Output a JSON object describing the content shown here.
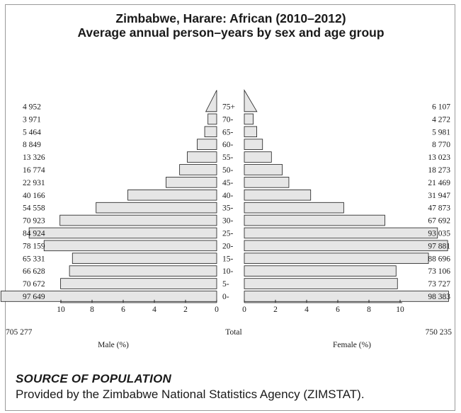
{
  "chart_data": {
    "type": "bar",
    "title": "Zimbabwe, Harare: African (2010–2012)",
    "subtitle": "Average annual person–years by sex and age group",
    "age_groups": [
      "75+",
      "70-",
      "65-",
      "60-",
      "55-",
      "50-",
      "45-",
      "40-",
      "35-",
      "30-",
      "25-",
      "20-",
      "15-",
      "10-",
      "5-",
      "0-"
    ],
    "series": [
      {
        "name": "Male (%)",
        "counts": [
          "4 952",
          "3 971",
          "5 464",
          "8 849",
          "13 326",
          "16 774",
          "22 931",
          "40 166",
          "54 558",
          "70 923",
          "84 924",
          "78 159",
          "65 331",
          "66 628",
          "70 672",
          "97 649"
        ],
        "values": [
          0.7,
          0.56,
          0.77,
          1.25,
          1.89,
          2.38,
          3.25,
          5.7,
          7.74,
          10.06,
          12.04,
          11.08,
          9.26,
          9.45,
          10.02,
          13.85
        ],
        "total": "705 277"
      },
      {
        "name": "Female (%)",
        "counts": [
          "6 107",
          "4 272",
          "5 981",
          "8 770",
          "13 023",
          "18 273",
          "21 469",
          "31 947",
          "47 873",
          "67 692",
          "93 035",
          "97 881",
          "88 696",
          "73 106",
          "73 727",
          "98 383"
        ],
        "values": [
          0.81,
          0.57,
          0.8,
          1.17,
          1.74,
          2.44,
          2.86,
          4.26,
          6.38,
          9.02,
          12.4,
          13.05,
          11.82,
          9.74,
          9.83,
          13.11
        ],
        "total": "750 235"
      }
    ],
    "x_ticks_male": [
      "10",
      "8",
      "6",
      "4",
      "2",
      "0"
    ],
    "x_ticks_female": [
      "0",
      "2",
      "4",
      "6",
      "8",
      "10"
    ],
    "xlim": [
      0,
      10
    ],
    "xlabel_male": "Male (%)",
    "xlabel_female": "Female (%)",
    "total_label": "Total",
    "bar_fill": "#e6e6e6",
    "bar_stroke": "#1a1a1a"
  },
  "source": {
    "heading": "SOURCE OF POPULATION",
    "text": "Provided by the Zimbabwe National Statistics Agency (ZIMSTAT)."
  }
}
